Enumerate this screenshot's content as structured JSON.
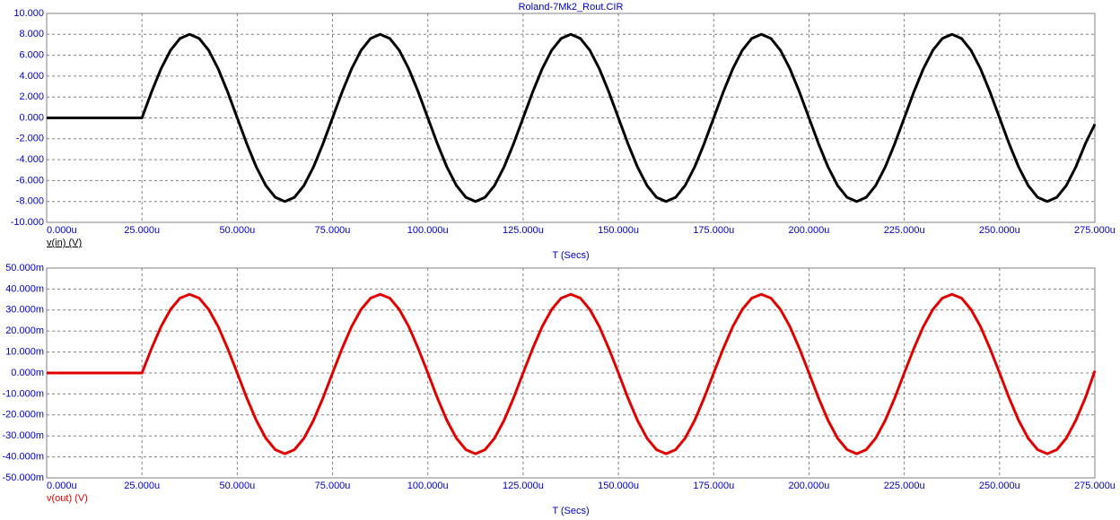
{
  "chart_data": [
    {
      "type": "line",
      "title": "Roland-7Mk2_Rout.CIR",
      "xlabel": "T (Secs)",
      "grid": true,
      "xlim": [
        0,
        0.000275
      ],
      "xticks": [
        {
          "value": 0,
          "label": "0.000u"
        },
        {
          "value": 2.5e-05,
          "label": "25.000u"
        },
        {
          "value": 5e-05,
          "label": "50.000u"
        },
        {
          "value": 7.5e-05,
          "label": "75.000u"
        },
        {
          "value": 0.0001,
          "label": "100.000u"
        },
        {
          "value": 0.000125,
          "label": "125.000u"
        },
        {
          "value": 0.00015,
          "label": "150.000u"
        },
        {
          "value": 0.000175,
          "label": "175.000u"
        },
        {
          "value": 0.0002,
          "label": "200.000u"
        },
        {
          "value": 0.000225,
          "label": "225.000u"
        },
        {
          "value": 0.00025,
          "label": "250.000u"
        },
        {
          "value": 0.000275,
          "label": "275.000u"
        }
      ],
      "ylim": [
        -10,
        10
      ],
      "yticks": [
        {
          "value": 10,
          "label": "10.000"
        },
        {
          "value": 8,
          "label": "8.000"
        },
        {
          "value": 6,
          "label": "6.000"
        },
        {
          "value": 4,
          "label": "4.000"
        },
        {
          "value": 2,
          "label": "2.000"
        },
        {
          "value": 0,
          "label": "0.000"
        },
        {
          "value": -2,
          "label": "-2.000"
        },
        {
          "value": -4,
          "label": "-4.000"
        },
        {
          "value": -6,
          "label": "-6.000"
        },
        {
          "value": -8,
          "label": "-8.000"
        },
        {
          "value": -10,
          "label": "-10.000"
        }
      ],
      "x": [
        0,
        2.5e-05,
        2.75e-05,
        3e-05,
        3.25e-05,
        3.5e-05,
        3.75e-05,
        4e-05,
        4.25e-05,
        4.5e-05,
        4.75e-05,
        5e-05,
        5.25e-05,
        5.5e-05,
        5.75e-05,
        6e-05,
        6.25e-05,
        6.5e-05,
        6.75e-05,
        7e-05,
        7.25e-05,
        7.5e-05,
        7.75e-05,
        8e-05,
        8.25e-05,
        8.5e-05,
        8.75e-05,
        9e-05,
        9.25e-05,
        9.5e-05,
        9.75e-05,
        0.0001,
        0.0001025,
        0.000105,
        0.0001075,
        0.00011,
        0.0001125,
        0.000115,
        0.0001175,
        0.00012,
        0.0001225,
        0.000125,
        0.0001275,
        0.00013,
        0.0001325,
        0.000135,
        0.0001375,
        0.00014,
        0.0001425,
        0.000145,
        0.0001475,
        0.00015,
        0.0001525,
        0.000155,
        0.0001575,
        0.00016,
        0.0001625,
        0.000165,
        0.0001675,
        0.00017,
        0.0001725,
        0.000175,
        0.0001775,
        0.00018,
        0.0001825,
        0.000185,
        0.0001875,
        0.00019,
        0.0001925,
        0.000195,
        0.0001975,
        0.0002,
        0.0002025,
        0.000205,
        0.0002075,
        0.00021,
        0.0002125,
        0.000215,
        0.0002175,
        0.00022,
        0.0002225,
        0.000225,
        0.0002275,
        0.00023,
        0.0002325,
        0.000235,
        0.0002375,
        0.00024,
        0.0002425,
        0.000245,
        0.0002475,
        0.00025,
        0.0002525,
        0.000255,
        0.0002575,
        0.00026,
        0.0002625,
        0.000265,
        0.0002675,
        0.00027,
        0.0002725,
        0.000275
      ],
      "series": [
        {
          "name": "v(in) (V)",
          "color": "#000000",
          "values": [
            0,
            0,
            2.47,
            4.7,
            6.47,
            7.61,
            8,
            7.61,
            6.47,
            4.7,
            2.47,
            0,
            -2.47,
            -4.7,
            -6.47,
            -7.61,
            -8,
            -7.61,
            -6.47,
            -4.7,
            -2.47,
            0,
            2.47,
            4.7,
            6.47,
            7.61,
            8,
            7.61,
            6.47,
            4.7,
            2.47,
            0,
            -2.47,
            -4.7,
            -6.47,
            -7.61,
            -8,
            -7.61,
            -6.47,
            -4.7,
            -2.47,
            0,
            2.47,
            4.7,
            6.47,
            7.61,
            8,
            7.61,
            6.47,
            4.7,
            2.47,
            0,
            -2.47,
            -4.7,
            -6.47,
            -7.61,
            -8,
            -7.61,
            -6.47,
            -4.7,
            -2.47,
            0,
            2.47,
            4.7,
            6.47,
            7.61,
            8,
            7.61,
            6.47,
            4.7,
            2.47,
            0,
            -2.47,
            -4.7,
            -6.47,
            -7.61,
            -8,
            -7.61,
            -6.47,
            -4.7,
            -2.47,
            0,
            2.47,
            4.7,
            6.47,
            7.61,
            8,
            7.61,
            6.47,
            4.7,
            2.47,
            0,
            -2.47,
            -4.7,
            -6.47,
            -7.61,
            -8,
            -7.61,
            -6.47,
            -4.7,
            -2.47,
            -0.6
          ]
        }
      ]
    },
    {
      "type": "line",
      "xlabel": "T (Secs)",
      "grid": true,
      "xlim": [
        0,
        0.000275
      ],
      "xticks": [
        {
          "value": 0,
          "label": "0.000u"
        },
        {
          "value": 2.5e-05,
          "label": "25.000u"
        },
        {
          "value": 5e-05,
          "label": "50.000u"
        },
        {
          "value": 7.5e-05,
          "label": "75.000u"
        },
        {
          "value": 0.0001,
          "label": "100.000u"
        },
        {
          "value": 0.000125,
          "label": "125.000u"
        },
        {
          "value": 0.00015,
          "label": "150.000u"
        },
        {
          "value": 0.000175,
          "label": "175.000u"
        },
        {
          "value": 0.0002,
          "label": "200.000u"
        },
        {
          "value": 0.000225,
          "label": "225.000u"
        },
        {
          "value": 0.00025,
          "label": "250.000u"
        },
        {
          "value": 0.000275,
          "label": "275.000u"
        }
      ],
      "ylim": [
        -0.05,
        0.05
      ],
      "yticks": [
        {
          "value": 0.05,
          "label": "50.000m"
        },
        {
          "value": 0.04,
          "label": "40.000m"
        },
        {
          "value": 0.03,
          "label": "30.000m"
        },
        {
          "value": 0.02,
          "label": "20.000m"
        },
        {
          "value": 0.01,
          "label": "10.000m"
        },
        {
          "value": 0,
          "label": "0.000m"
        },
        {
          "value": -0.01,
          "label": "-10.000m"
        },
        {
          "value": -0.02,
          "label": "-20.000m"
        },
        {
          "value": -0.03,
          "label": "-30.000m"
        },
        {
          "value": -0.04,
          "label": "-40.000m"
        },
        {
          "value": -0.05,
          "label": "-50.000m"
        }
      ],
      "x": [
        0,
        2.5e-05,
        2.75e-05,
        3e-05,
        3.25e-05,
        3.5e-05,
        3.75e-05,
        4e-05,
        4.25e-05,
        4.5e-05,
        4.75e-05,
        5e-05,
        5.25e-05,
        5.5e-05,
        5.75e-05,
        6e-05,
        6.25e-05,
        6.5e-05,
        6.75e-05,
        7e-05,
        7.25e-05,
        7.5e-05,
        7.75e-05,
        8e-05,
        8.25e-05,
        8.5e-05,
        8.75e-05,
        9e-05,
        9.25e-05,
        9.5e-05,
        9.75e-05,
        0.0001,
        0.0001025,
        0.000105,
        0.0001075,
        0.00011,
        0.0001125,
        0.000115,
        0.0001175,
        0.00012,
        0.0001225,
        0.000125,
        0.0001275,
        0.00013,
        0.0001325,
        0.000135,
        0.0001375,
        0.00014,
        0.0001425,
        0.000145,
        0.0001475,
        0.00015,
        0.0001525,
        0.000155,
        0.0001575,
        0.00016,
        0.0001625,
        0.000165,
        0.0001675,
        0.00017,
        0.0001725,
        0.000175,
        0.0001775,
        0.00018,
        0.0001825,
        0.000185,
        0.0001875,
        0.00019,
        0.0001925,
        0.000195,
        0.0001975,
        0.0002,
        0.0002025,
        0.000205,
        0.0002075,
        0.00021,
        0.0002125,
        0.000215,
        0.0002175,
        0.00022,
        0.0002225,
        0.000225,
        0.0002275,
        0.00023,
        0.0002325,
        0.000235,
        0.0002375,
        0.00024,
        0.0002425,
        0.000245,
        0.0002475,
        0.00025,
        0.0002525,
        0.000255,
        0.0002575,
        0.00026,
        0.0002625,
        0.000265,
        0.0002675,
        0.00027,
        0.0002725,
        0.000275
      ],
      "series": [
        {
          "name": "v(out) (V)",
          "color": "#e00000",
          "values": [
            0,
            0,
            0.0116,
            0.0221,
            0.0303,
            0.0357,
            0.0375,
            0.0357,
            0.0303,
            0.0221,
            0.0116,
            0,
            -0.0119,
            -0.0226,
            -0.0311,
            -0.0366,
            -0.0385,
            -0.0366,
            -0.0311,
            -0.0226,
            -0.0119,
            0,
            0.0116,
            0.0221,
            0.0303,
            0.0357,
            0.0375,
            0.0357,
            0.0303,
            0.0221,
            0.0116,
            0,
            -0.0119,
            -0.0226,
            -0.0311,
            -0.0366,
            -0.0385,
            -0.0366,
            -0.0311,
            -0.0226,
            -0.0119,
            0,
            0.0116,
            0.0221,
            0.0303,
            0.0357,
            0.0375,
            0.0357,
            0.0303,
            0.0221,
            0.0116,
            0,
            -0.0119,
            -0.0226,
            -0.0311,
            -0.0366,
            -0.0385,
            -0.0366,
            -0.0311,
            -0.0226,
            -0.0119,
            0,
            0.0116,
            0.0221,
            0.0303,
            0.0357,
            0.0375,
            0.0357,
            0.0303,
            0.0221,
            0.0116,
            0,
            -0.0119,
            -0.0226,
            -0.0311,
            -0.0366,
            -0.0385,
            -0.0366,
            -0.0311,
            -0.0226,
            -0.0119,
            0,
            0.0116,
            0.0221,
            0.0303,
            0.0357,
            0.0375,
            0.0357,
            0.0303,
            0.0221,
            0.0116,
            0,
            -0.0119,
            -0.0226,
            -0.0311,
            -0.0366,
            -0.0385,
            -0.0366,
            -0.0311,
            -0.0226,
            -0.0119,
            0.001
          ]
        }
      ]
    }
  ]
}
